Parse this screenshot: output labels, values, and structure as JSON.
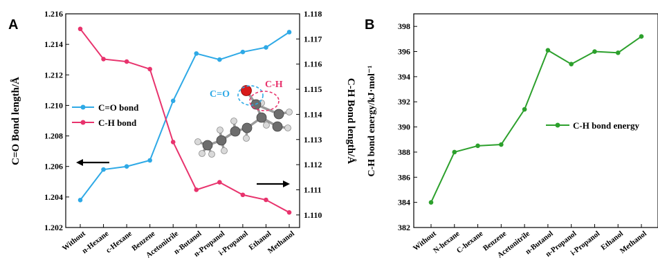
{
  "chart_data": [
    {
      "type": "line",
      "panel_label": "A",
      "categories": [
        "Without",
        "n-Hexane",
        "c-Hexane",
        "Benzene",
        "Acetonitrile",
        "n-Butanol",
        "n-Propanol",
        "i-Propanol",
        "Ethanol",
        "Methanol"
      ],
      "ylabel": "C=O Bond length/Å",
      "y2label": "C-H Bond length/Å",
      "ylim": [
        1.202,
        1.216
      ],
      "y2lim": [
        1.1095,
        1.118
      ],
      "yticks": [
        "1.202",
        "1.204",
        "1.206",
        "1.208",
        "1.210",
        "1.212",
        "1.214",
        "1.216"
      ],
      "y2ticks": [
        "1.110",
        "1.111",
        "1.112",
        "1.113",
        "1.114",
        "1.115",
        "1.116",
        "1.117",
        "1.118"
      ],
      "legend_position": "center-left",
      "series": [
        {
          "name": "C=O bond",
          "axis": "left",
          "color": "#2ea9e6",
          "values": [
            1.2038,
            1.2058,
            1.206,
            1.2064,
            1.2103,
            1.2134,
            1.213,
            1.2135,
            1.2138,
            1.2148
          ]
        },
        {
          "name": "C-H bond",
          "axis": "right",
          "color": "#e8336d",
          "values": [
            1.1174,
            1.1162,
            1.1161,
            1.1158,
            1.1129,
            1.111,
            1.1113,
            1.1108,
            1.1106,
            1.1101
          ]
        }
      ],
      "annotations": {
        "co_label": "C=O",
        "ch_label": "C-H",
        "co_color": "#2ea9e6",
        "ch_color": "#e8336d"
      }
    },
    {
      "type": "line",
      "panel_label": "B",
      "categories": [
        "Without",
        "N-hexane",
        "C-hexane",
        "Benzene",
        "Acetonitrile",
        "n-Butanol",
        "n-Propanol",
        "i-Propanol",
        "Ethanol",
        "Methanol"
      ],
      "ylabel": "C-H bond energy/kJ·mol⁻¹",
      "ylim": [
        382,
        399
      ],
      "yticks": [
        "382",
        "384",
        "386",
        "388",
        "390",
        "392",
        "394",
        "396",
        "398"
      ],
      "legend_position": "center-right",
      "series": [
        {
          "name": "C-H bond energy",
          "color": "#2ca02c",
          "values": [
            384.0,
            388.0,
            388.5,
            388.6,
            391.4,
            396.1,
            395.0,
            396.0,
            395.9,
            397.2
          ]
        }
      ]
    }
  ]
}
